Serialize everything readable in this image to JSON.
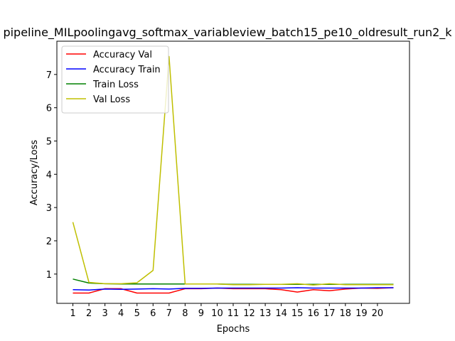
{
  "chart_data": {
    "type": "line",
    "title": "pipeline_MILpoolingavg_softmax_variableview_batch15_pe10_oldresult_run2_k",
    "xlabel": "Epochs",
    "ylabel": "Accuracy/Loss",
    "x": [
      1,
      2,
      3,
      4,
      5,
      6,
      7,
      8,
      9,
      10,
      11,
      12,
      13,
      14,
      15,
      16,
      17,
      18,
      19,
      20,
      21
    ],
    "xticks": [
      "1",
      "2",
      "3",
      "4",
      "5",
      "6",
      "7",
      "8",
      "9",
      "10",
      "11",
      "12",
      "13",
      "14",
      "15",
      "16",
      "17",
      "18",
      "19",
      "20"
    ],
    "yticks": [
      "1",
      "2",
      "3",
      "4",
      "5",
      "6",
      "7"
    ],
    "ylim": [
      0.12,
      8.0
    ],
    "xlim": [
      0.0,
      22.0
    ],
    "legend_position": "upper-left",
    "grid": false,
    "series": [
      {
        "name": "Accuracy Val",
        "color": "#ff0000",
        "values": [
          0.43,
          0.43,
          0.56,
          0.56,
          0.43,
          0.43,
          0.43,
          0.56,
          0.56,
          0.58,
          0.56,
          0.56,
          0.56,
          0.53,
          0.46,
          0.53,
          0.5,
          0.55,
          0.58,
          0.57,
          0.59
        ]
      },
      {
        "name": "Accuracy Train",
        "color": "#0000ff",
        "values": [
          0.53,
          0.52,
          0.55,
          0.54,
          0.55,
          0.56,
          0.55,
          0.57,
          0.57,
          0.58,
          0.58,
          0.58,
          0.58,
          0.58,
          0.59,
          0.58,
          0.58,
          0.58,
          0.58,
          0.59,
          0.59
        ]
      },
      {
        "name": "Train Loss",
        "color": "#008000",
        "values": [
          0.85,
          0.73,
          0.71,
          0.7,
          0.7,
          0.7,
          0.7,
          0.7,
          0.7,
          0.7,
          0.69,
          0.69,
          0.69,
          0.69,
          0.69,
          0.69,
          0.69,
          0.69,
          0.69,
          0.69,
          0.69
        ]
      },
      {
        "name": "Val Loss",
        "color": "#bfbf00",
        "values": [
          2.56,
          0.75,
          0.71,
          0.71,
          0.74,
          1.11,
          7.54,
          0.7,
          0.7,
          0.7,
          0.68,
          0.68,
          0.69,
          0.69,
          0.71,
          0.67,
          0.71,
          0.68,
          0.68,
          0.68,
          0.68
        ]
      }
    ]
  }
}
